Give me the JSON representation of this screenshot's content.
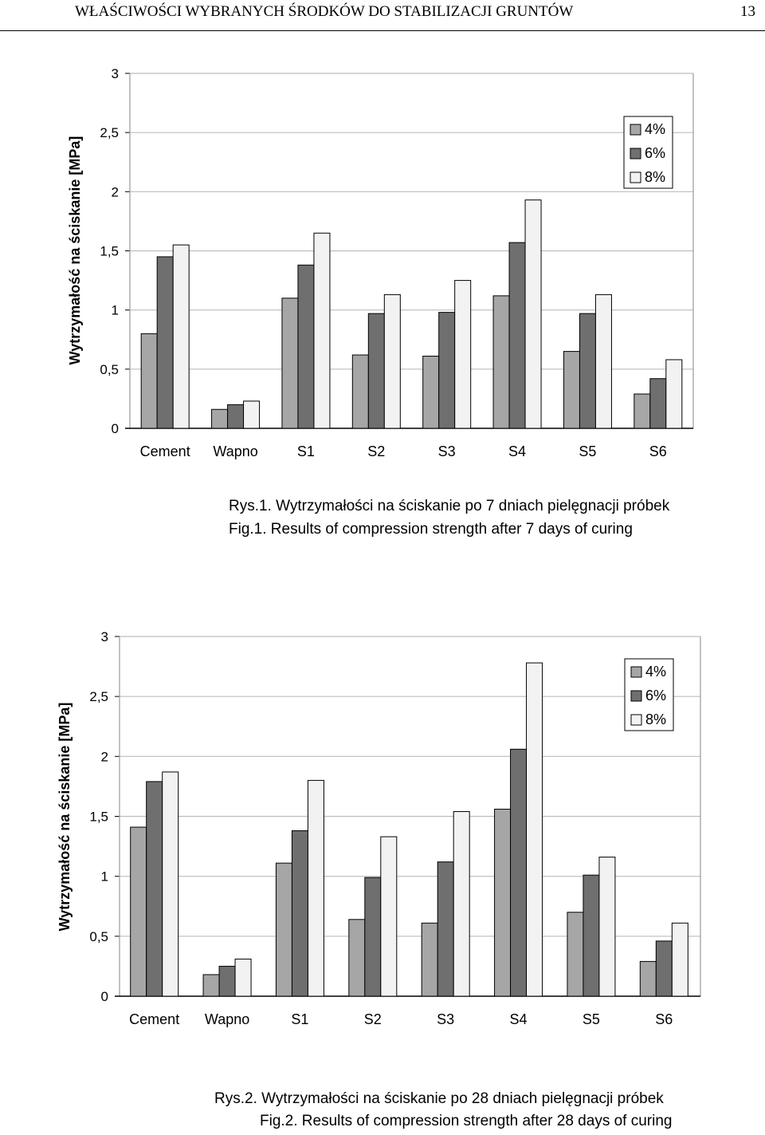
{
  "header": {
    "title": "WŁAŚCIWOŚCI WYBRANYCH ŚRODKÓW DO STABILIZACJI GRUNTÓW",
    "page_number": "13"
  },
  "colors": {
    "4%": "#a6a6a6",
    "6%": "#6f6f6f",
    "8%": "#f2f2f2"
  },
  "chart_data": [
    {
      "type": "bar",
      "title": "",
      "xlabel": "",
      "ylabel": "Wytrzymałość na ściskanie [MPa]",
      "ylim": [
        0,
        3
      ],
      "yticks": [
        0,
        0.5,
        1,
        1.5,
        2,
        2.5,
        3
      ],
      "ytick_labels": [
        "0",
        "0,5",
        "1",
        "1,5",
        "2",
        "2,5",
        "3"
      ],
      "grid": true,
      "legend": "top-right",
      "categories": [
        "Cement",
        "Wapno",
        "S1",
        "S2",
        "S3",
        "S4",
        "S5",
        "S6"
      ],
      "series": [
        {
          "name": "4%",
          "values": [
            0.8,
            0.16,
            1.1,
            0.62,
            0.61,
            1.12,
            0.65,
            0.29
          ]
        },
        {
          "name": "6%",
          "values": [
            1.45,
            0.2,
            1.38,
            0.97,
            0.98,
            1.57,
            0.97,
            0.42
          ]
        },
        {
          "name": "8%",
          "values": [
            1.55,
            0.23,
            1.65,
            1.13,
            1.25,
            1.93,
            1.13,
            0.58
          ]
        }
      ]
    },
    {
      "type": "bar",
      "title": "",
      "xlabel": "",
      "ylabel": "Wytrzymałość na ściskanie [MPa]",
      "ylim": [
        0,
        3
      ],
      "yticks": [
        0,
        0.5,
        1,
        1.5,
        2,
        2.5,
        3
      ],
      "ytick_labels": [
        "0",
        "0,5",
        "1",
        "1,5",
        "2",
        "2,5",
        "3"
      ],
      "grid": true,
      "legend": "top-right",
      "categories": [
        "Cement",
        "Wapno",
        "S1",
        "S2",
        "S3",
        "S4",
        "S5",
        "S6"
      ],
      "series": [
        {
          "name": "4%",
          "values": [
            1.41,
            0.18,
            1.11,
            0.64,
            0.61,
            1.56,
            0.7,
            0.29
          ]
        },
        {
          "name": "6%",
          "values": [
            1.79,
            0.25,
            1.38,
            0.99,
            1.12,
            2.06,
            1.01,
            0.46
          ]
        },
        {
          "name": "8%",
          "values": [
            1.87,
            0.31,
            1.8,
            1.33,
            1.54,
            2.78,
            1.16,
            0.61
          ]
        }
      ]
    }
  ],
  "captions": [
    {
      "pl": "Rys.1. Wytrzymałości na ściskanie po 7 dniach pielęgnacji próbek",
      "en": "Fig.1. Results of compression strength after 7 days of curing"
    },
    {
      "pl": "Rys.2. Wytrzymałości na ściskanie po 28 dniach pielęgnacji próbek",
      "en": "Fig.2. Results of compression strength after 28 days of curing"
    }
  ]
}
